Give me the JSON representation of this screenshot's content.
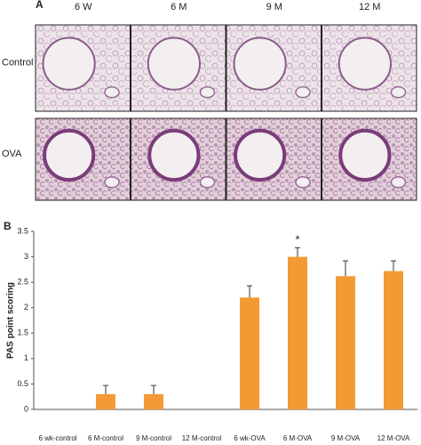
{
  "panel_a": {
    "label": "A",
    "columns": [
      "6 W",
      "6 M",
      "9 M",
      "12 M"
    ],
    "rows": [
      "Control",
      "OVA"
    ]
  },
  "chart_data": {
    "type": "bar",
    "panel_label": "B",
    "ylabel": "PAS point scoring",
    "categories": [
      "6 wk-control",
      "6 M-control",
      "9 M-control",
      "12 M-control",
      "6 wk-OVA",
      "6 M-OVA",
      "9 M-OVA",
      "12 M-OVA"
    ],
    "values": [
      0,
      0.3,
      0.3,
      0,
      2.2,
      3.0,
      2.62,
      2.72
    ],
    "errors": [
      null,
      0.17,
      0.17,
      null,
      0.23,
      0.18,
      0.3,
      0.2
    ],
    "markers": [
      null,
      null,
      null,
      null,
      null,
      "*",
      null,
      null
    ],
    "color": "#f39a34",
    "ylim": [
      0,
      3.5
    ],
    "yticks": [
      0,
      0.5,
      1,
      1.5,
      2,
      2.5,
      3,
      3.5
    ]
  }
}
